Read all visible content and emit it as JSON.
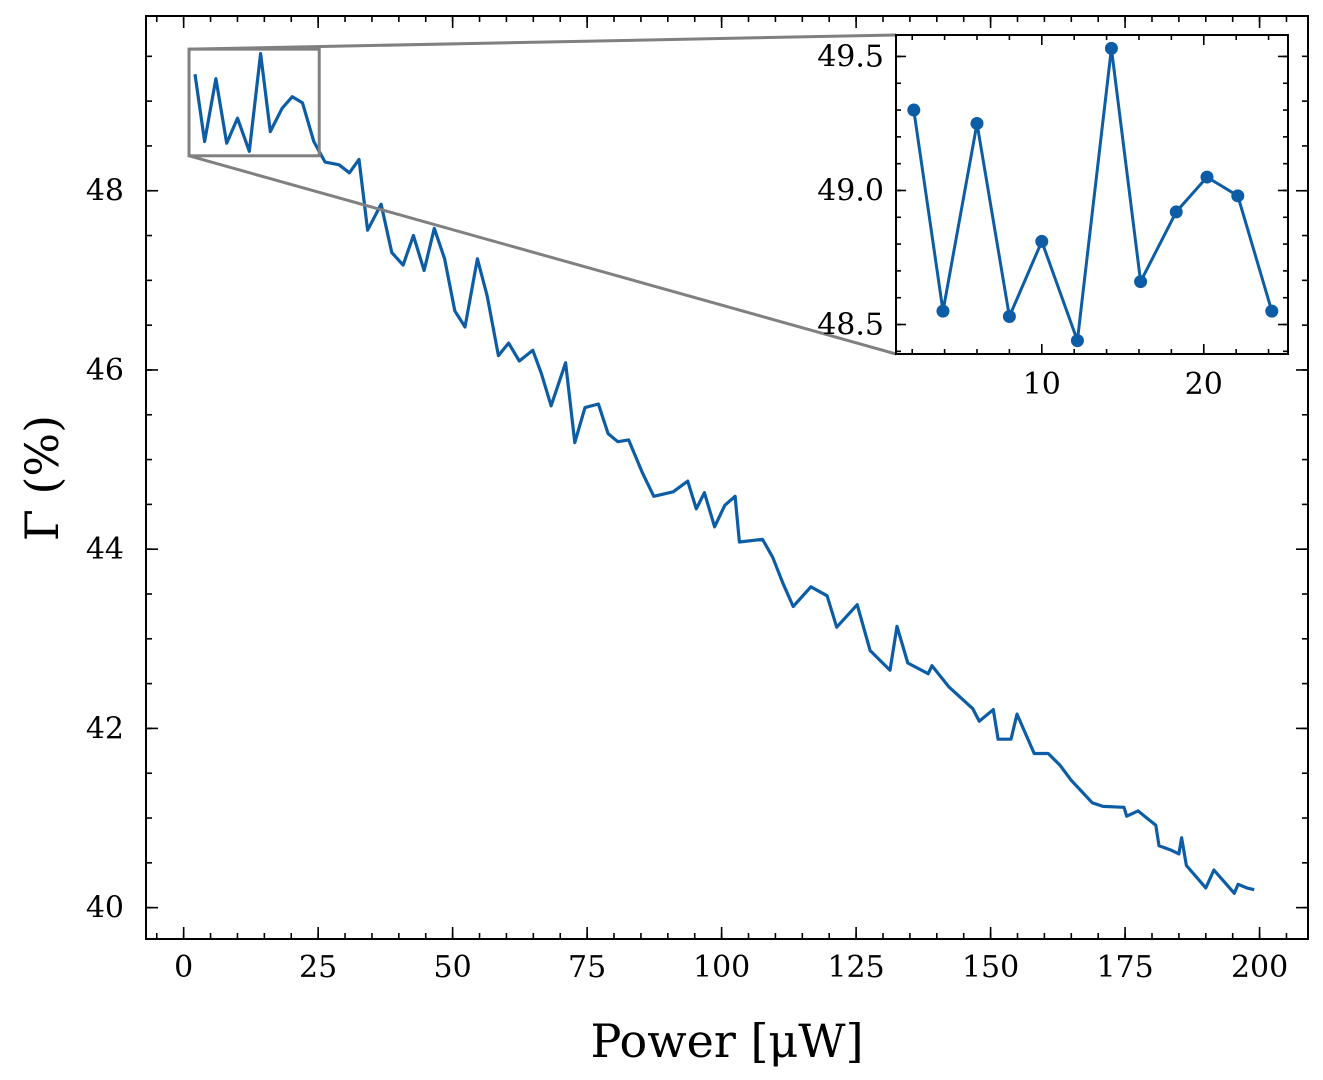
{
  "chart_data": [
    {
      "type": "line",
      "xlabel": "Power [μW]",
      "ylabel": "Γ (%)",
      "xlim": [
        -7,
        209
      ],
      "ylim": [
        39.65,
        49.95
      ],
      "xticks": [
        0,
        25,
        50,
        75,
        100,
        125,
        150,
        175,
        200
      ],
      "yticks": [
        40,
        42,
        44,
        46,
        48
      ],
      "xtick_labels": [
        "0",
        "25",
        "50",
        "75",
        "100",
        "125",
        "150",
        "175",
        "200"
      ],
      "ytick_labels": [
        "40",
        "42",
        "44",
        "46",
        "48"
      ],
      "x": [
        2.1,
        3.9,
        6.0,
        8.0,
        10.0,
        12.2,
        14.3,
        16.1,
        18.3,
        20.2,
        22.1,
        24.2,
        26.3,
        28.9,
        30.8,
        32.6,
        34.2,
        36.7,
        38.7,
        40.8,
        42.7,
        44.7,
        46.6,
        48.5,
        50.4,
        52.3,
        54.6,
        56.4,
        58.5,
        60.4,
        62.4,
        64.9,
        66.5,
        68.3,
        71.0,
        72.7,
        74.6,
        77.1,
        78.9,
        80.7,
        82.7,
        85.3,
        87.4,
        91.0,
        93.7,
        95.3,
        96.8,
        98.7,
        100.6,
        102.5,
        103.3,
        107.6,
        109.5,
        111.4,
        113.3,
        116.6,
        119.6,
        121.4,
        125.2,
        127.6,
        131.3,
        132.6,
        134.6,
        138.4,
        139.1,
        142.3,
        144.5,
        146.7,
        147.9,
        150.5,
        151.4,
        153.8,
        154.9,
        158.1,
        160.7,
        162.9,
        165.0,
        168.9,
        170.9,
        174.8,
        175.3,
        177.4,
        180.7,
        181.3,
        183.6,
        185.0,
        185.5,
        186.4,
        190.0,
        191.5,
        195.3,
        196.0,
        197.6,
        199.0
      ],
      "y": [
        49.3,
        48.55,
        49.25,
        48.53,
        48.81,
        48.44,
        49.53,
        48.66,
        48.92,
        49.05,
        48.98,
        48.55,
        48.32,
        48.29,
        48.2,
        48.35,
        47.56,
        47.85,
        47.31,
        47.17,
        47.5,
        47.11,
        47.58,
        47.24,
        46.66,
        46.48,
        47.24,
        46.83,
        46.16,
        46.3,
        46.1,
        46.22,
        45.96,
        45.6,
        46.08,
        45.19,
        45.58,
        45.62,
        45.29,
        45.2,
        45.22,
        44.85,
        44.59,
        44.64,
        44.76,
        44.45,
        44.63,
        44.25,
        44.49,
        44.59,
        44.08,
        44.11,
        43.91,
        43.62,
        43.36,
        43.58,
        43.48,
        43.13,
        43.38,
        42.87,
        42.65,
        43.14,
        42.73,
        42.61,
        42.7,
        42.46,
        42.34,
        42.22,
        42.08,
        42.21,
        41.88,
        41.88,
        42.16,
        41.72,
        41.72,
        41.59,
        41.42,
        41.17,
        41.13,
        41.12,
        41.02,
        41.08,
        40.92,
        40.69,
        40.64,
        40.6,
        40.78,
        40.47,
        40.22,
        40.42,
        40.16,
        40.26,
        40.22,
        40.2
      ]
    },
    {
      "type": "line",
      "subtype": "inset",
      "xlim": [
        1.0,
        25.2
      ],
      "ylim": [
        48.39,
        49.58
      ],
      "xticks": [
        10,
        20
      ],
      "yticks": [
        48.5,
        49.0,
        49.5
      ],
      "xtick_labels": [
        "10",
        "20"
      ],
      "ytick_labels": [
        "48.5",
        "49.0",
        "49.5"
      ],
      "zoom_region": {
        "x": [
          1.0,
          25.2
        ],
        "y": [
          48.39,
          49.58
        ]
      },
      "x": [
        2.1,
        3.9,
        6.0,
        8.0,
        10.0,
        12.2,
        14.3,
        16.1,
        18.3,
        20.2,
        22.1,
        24.2
      ],
      "y": [
        49.3,
        48.55,
        49.25,
        48.53,
        48.81,
        48.44,
        49.53,
        48.66,
        48.92,
        49.05,
        48.98,
        48.55
      ]
    }
  ],
  "colors": {
    "series": "#0c5da5",
    "zoom_box": "#808080",
    "axes": "#000000"
  }
}
